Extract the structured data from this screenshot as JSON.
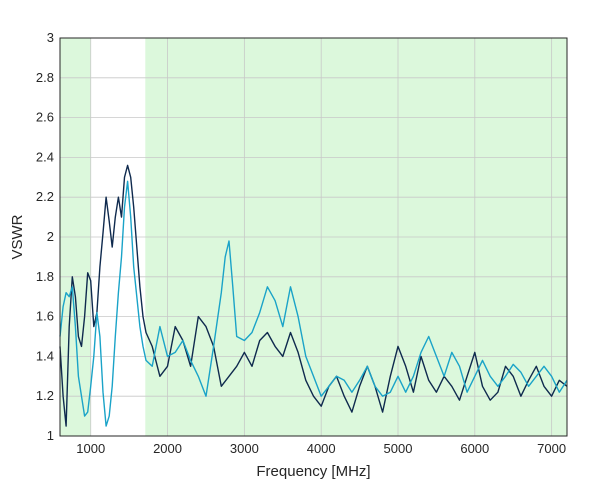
{
  "chart_data": {
    "type": "line",
    "title": "",
    "xlabel": "Frequency [MHz]",
    "ylabel": "VSWR",
    "xlim": [
      600,
      7200
    ],
    "ylim": [
      1,
      3
    ],
    "xticks": [
      1000,
      2000,
      3000,
      4000,
      5000,
      6000,
      7000
    ],
    "yticks": [
      1,
      1.2,
      1.4,
      1.6,
      1.8,
      2,
      2.2,
      2.4,
      2.6,
      2.8,
      3
    ],
    "grid": true,
    "legend": "none",
    "shaded_bands": [
      {
        "x": [
          600,
          1000
        ],
        "color": "#dcf8dc"
      },
      {
        "x": [
          1710,
          7200
        ],
        "color": "#dcf8dc"
      }
    ],
    "series": [
      {
        "color": "#0f2a4e",
        "points": [
          [
            600,
            1.45
          ],
          [
            640,
            1.2
          ],
          [
            680,
            1.05
          ],
          [
            720,
            1.55
          ],
          [
            760,
            1.8
          ],
          [
            800,
            1.7
          ],
          [
            840,
            1.5
          ],
          [
            880,
            1.45
          ],
          [
            920,
            1.6
          ],
          [
            960,
            1.82
          ],
          [
            1000,
            1.78
          ],
          [
            1040,
            1.55
          ],
          [
            1080,
            1.62
          ],
          [
            1120,
            1.85
          ],
          [
            1160,
            2.02
          ],
          [
            1200,
            2.2
          ],
          [
            1240,
            2.08
          ],
          [
            1280,
            1.95
          ],
          [
            1320,
            2.1
          ],
          [
            1360,
            2.2
          ],
          [
            1400,
            2.1
          ],
          [
            1440,
            2.3
          ],
          [
            1480,
            2.36
          ],
          [
            1520,
            2.3
          ],
          [
            1560,
            2.15
          ],
          [
            1600,
            1.95
          ],
          [
            1640,
            1.75
          ],
          [
            1680,
            1.6
          ],
          [
            1720,
            1.52
          ],
          [
            1800,
            1.45
          ],
          [
            1900,
            1.3
          ],
          [
            2000,
            1.35
          ],
          [
            2100,
            1.55
          ],
          [
            2200,
            1.48
          ],
          [
            2300,
            1.35
          ],
          [
            2400,
            1.6
          ],
          [
            2500,
            1.55
          ],
          [
            2600,
            1.45
          ],
          [
            2700,
            1.25
          ],
          [
            2800,
            1.3
          ],
          [
            2900,
            1.35
          ],
          [
            3000,
            1.42
          ],
          [
            3100,
            1.35
          ],
          [
            3200,
            1.48
          ],
          [
            3300,
            1.52
          ],
          [
            3400,
            1.45
          ],
          [
            3500,
            1.4
          ],
          [
            3600,
            1.52
          ],
          [
            3700,
            1.42
          ],
          [
            3800,
            1.28
          ],
          [
            3900,
            1.2
          ],
          [
            4000,
            1.15
          ],
          [
            4100,
            1.25
          ],
          [
            4200,
            1.3
          ],
          [
            4300,
            1.2
          ],
          [
            4400,
            1.12
          ],
          [
            4500,
            1.25
          ],
          [
            4600,
            1.35
          ],
          [
            4700,
            1.25
          ],
          [
            4800,
            1.12
          ],
          [
            4900,
            1.3
          ],
          [
            5000,
            1.45
          ],
          [
            5100,
            1.35
          ],
          [
            5200,
            1.22
          ],
          [
            5300,
            1.4
          ],
          [
            5400,
            1.28
          ],
          [
            5500,
            1.22
          ],
          [
            5600,
            1.3
          ],
          [
            5700,
            1.25
          ],
          [
            5800,
            1.18
          ],
          [
            5900,
            1.3
          ],
          [
            6000,
            1.42
          ],
          [
            6100,
            1.25
          ],
          [
            6200,
            1.18
          ],
          [
            6300,
            1.22
          ],
          [
            6400,
            1.35
          ],
          [
            6500,
            1.3
          ],
          [
            6600,
            1.2
          ],
          [
            6700,
            1.28
          ],
          [
            6800,
            1.35
          ],
          [
            6900,
            1.25
          ],
          [
            7000,
            1.2
          ],
          [
            7100,
            1.28
          ],
          [
            7200,
            1.25
          ]
        ]
      },
      {
        "color": "#1aa3c8",
        "points": [
          [
            600,
            1.5
          ],
          [
            640,
            1.65
          ],
          [
            680,
            1.72
          ],
          [
            720,
            1.7
          ],
          [
            760,
            1.75
          ],
          [
            800,
            1.55
          ],
          [
            840,
            1.3
          ],
          [
            880,
            1.2
          ],
          [
            920,
            1.1
          ],
          [
            960,
            1.12
          ],
          [
            1000,
            1.25
          ],
          [
            1040,
            1.4
          ],
          [
            1080,
            1.62
          ],
          [
            1120,
            1.5
          ],
          [
            1160,
            1.22
          ],
          [
            1200,
            1.05
          ],
          [
            1240,
            1.1
          ],
          [
            1280,
            1.25
          ],
          [
            1320,
            1.5
          ],
          [
            1360,
            1.72
          ],
          [
            1400,
            1.9
          ],
          [
            1440,
            2.15
          ],
          [
            1480,
            2.28
          ],
          [
            1520,
            2.1
          ],
          [
            1560,
            1.85
          ],
          [
            1600,
            1.7
          ],
          [
            1640,
            1.55
          ],
          [
            1680,
            1.45
          ],
          [
            1720,
            1.38
          ],
          [
            1800,
            1.35
          ],
          [
            1900,
            1.55
          ],
          [
            2000,
            1.4
          ],
          [
            2100,
            1.42
          ],
          [
            2200,
            1.48
          ],
          [
            2300,
            1.38
          ],
          [
            2400,
            1.3
          ],
          [
            2500,
            1.2
          ],
          [
            2600,
            1.45
          ],
          [
            2700,
            1.72
          ],
          [
            2750,
            1.9
          ],
          [
            2800,
            1.98
          ],
          [
            2850,
            1.75
          ],
          [
            2900,
            1.5
          ],
          [
            3000,
            1.48
          ],
          [
            3100,
            1.52
          ],
          [
            3200,
            1.62
          ],
          [
            3300,
            1.75
          ],
          [
            3400,
            1.68
          ],
          [
            3500,
            1.55
          ],
          [
            3600,
            1.75
          ],
          [
            3700,
            1.6
          ],
          [
            3800,
            1.4
          ],
          [
            3900,
            1.3
          ],
          [
            4000,
            1.2
          ],
          [
            4100,
            1.25
          ],
          [
            4200,
            1.3
          ],
          [
            4300,
            1.28
          ],
          [
            4400,
            1.22
          ],
          [
            4500,
            1.28
          ],
          [
            4600,
            1.35
          ],
          [
            4700,
            1.25
          ],
          [
            4800,
            1.2
          ],
          [
            4900,
            1.22
          ],
          [
            5000,
            1.3
          ],
          [
            5100,
            1.22
          ],
          [
            5200,
            1.3
          ],
          [
            5300,
            1.42
          ],
          [
            5400,
            1.5
          ],
          [
            5500,
            1.4
          ],
          [
            5600,
            1.3
          ],
          [
            5700,
            1.42
          ],
          [
            5800,
            1.35
          ],
          [
            5900,
            1.22
          ],
          [
            6000,
            1.3
          ],
          [
            6100,
            1.38
          ],
          [
            6200,
            1.3
          ],
          [
            6300,
            1.25
          ],
          [
            6400,
            1.3
          ],
          [
            6500,
            1.36
          ],
          [
            6600,
            1.32
          ],
          [
            6700,
            1.25
          ],
          [
            6800,
            1.3
          ],
          [
            6900,
            1.35
          ],
          [
            7000,
            1.3
          ],
          [
            7100,
            1.22
          ],
          [
            7200,
            1.28
          ]
        ]
      }
    ]
  }
}
